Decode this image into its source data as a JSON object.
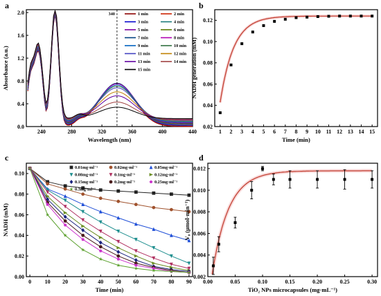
{
  "chart_data": [
    {
      "panel": "a",
      "type": "line",
      "xlabel": "Wavelength (nm)",
      "ylabel": "Absorbance (a.u.)",
      "xlim": [
        220,
        440
      ],
      "ylim": [
        0.0,
        2.05
      ],
      "xticks": [
        240,
        280,
        320,
        360,
        400,
        440
      ],
      "yticks": [
        0.0,
        0.4,
        0.8,
        1.2,
        1.6,
        2.0
      ],
      "annotation": "340",
      "annotation_x": 340,
      "legend_position": "top-right",
      "series": [
        {
          "name": "1 min",
          "color": "#8b0000",
          "peak340": 0.76
        },
        {
          "name": "2 min",
          "color": "#cc2200",
          "peak340": 0.75
        },
        {
          "name": "3 min",
          "color": "#0000cc",
          "peak340": 0.74
        },
        {
          "name": "4 min",
          "color": "#1a7a7a",
          "peak340": 0.73
        },
        {
          "name": "5 min",
          "color": "#7a00a0",
          "peak340": 0.72
        },
        {
          "name": "6 min",
          "color": "#5a7a00",
          "peak340": 0.71
        },
        {
          "name": "7 min",
          "color": "#004080",
          "peak340": 0.7
        },
        {
          "name": "8 min",
          "color": "#b000b0",
          "peak340": 0.68
        },
        {
          "name": "9 min",
          "color": "#0060c0",
          "peak340": 0.65
        },
        {
          "name": "10 min",
          "color": "#307040",
          "peak340": 0.62
        },
        {
          "name": "11 min",
          "color": "#4040c0",
          "peak340": 0.58
        },
        {
          "name": "12 min",
          "color": "#c08000",
          "peak340": 0.5
        },
        {
          "name": "13 min",
          "color": "#6000a0",
          "peak340": 0.42
        },
        {
          "name": "14 min",
          "color": "#a04040",
          "peak340": 0.3
        },
        {
          "name": "15 min",
          "color": "#000000",
          "peak340": 0.2
        }
      ]
    },
    {
      "panel": "b",
      "type": "scatter",
      "xlabel": "Time (min)",
      "ylabel": "NADH generation (mM)",
      "xlim": [
        0.5,
        15.5
      ],
      "ylim": [
        0.02,
        0.13
      ],
      "xticks": [
        1,
        2,
        3,
        4,
        5,
        6,
        7,
        8,
        9,
        10,
        11,
        12,
        13,
        14,
        15
      ],
      "yticks": [
        0.02,
        0.04,
        0.06,
        0.08,
        0.1,
        0.12
      ],
      "x": [
        1,
        2,
        3,
        4,
        5,
        6,
        7,
        8,
        9,
        10,
        11,
        12,
        13,
        14,
        15
      ],
      "y": [
        0.033,
        0.078,
        0.098,
        0.109,
        0.115,
        0.119,
        0.121,
        0.1225,
        0.123,
        0.1235,
        0.1238,
        0.124,
        0.124,
        0.124,
        0.124
      ],
      "fit_color": "#c0392b"
    },
    {
      "panel": "c",
      "type": "scatter",
      "xlabel": "Time (min)",
      "ylabel": "NADH (mM)",
      "xlim": [
        -2,
        92
      ],
      "ylim": [
        0.0,
        0.11
      ],
      "xticks": [
        0,
        10,
        20,
        30,
        40,
        50,
        60,
        70,
        80,
        90
      ],
      "yticks": [
        0.0,
        0.02,
        0.04,
        0.06,
        0.08,
        0.1
      ],
      "x": [
        0,
        10,
        20,
        30,
        40,
        50,
        60,
        70,
        80,
        90
      ],
      "legend_position": "top",
      "series": [
        {
          "name": "0.01mg·ml⁻¹",
          "color": "#222222",
          "marker": "square",
          "values": [
            0.105,
            0.092,
            0.088,
            0.086,
            0.084,
            0.083,
            0.082,
            0.081,
            0.08,
            0.079
          ]
        },
        {
          "name": "0.02mg·ml⁻¹",
          "color": "#a0522d",
          "marker": "circle",
          "values": [
            0.105,
            0.09,
            0.085,
            0.08,
            0.076,
            0.073,
            0.07,
            0.067,
            0.065,
            0.063
          ]
        },
        {
          "name": "0.05mg·ml⁻¹",
          "color": "#1f4fd8",
          "marker": "triangle",
          "values": [
            0.105,
            0.085,
            0.078,
            0.07,
            0.063,
            0.057,
            0.051,
            0.046,
            0.04,
            0.035
          ]
        },
        {
          "name": "0.08mg·ml⁻¹",
          "color": "#1f8f8f",
          "marker": "tridown",
          "values": [
            0.105,
            0.084,
            0.074,
            0.063,
            0.053,
            0.044,
            0.036,
            0.028,
            0.02,
            0.013
          ]
        },
        {
          "name": "0.1mg·ml⁻¹",
          "color": "#b03060",
          "marker": "tridown",
          "values": [
            0.105,
            0.082,
            0.068,
            0.055,
            0.044,
            0.034,
            0.025,
            0.018,
            0.012,
            0.008
          ]
        },
        {
          "name": "0.12mg·ml⁻¹",
          "color": "#6b8e23",
          "marker": "triright",
          "values": [
            0.105,
            0.078,
            0.062,
            0.049,
            0.038,
            0.028,
            0.02,
            0.013,
            0.009,
            0.006
          ]
        },
        {
          "name": "0.15mg·ml⁻¹",
          "color": "#1a237e",
          "marker": "diamond",
          "values": [
            0.105,
            0.075,
            0.058,
            0.045,
            0.033,
            0.024,
            0.016,
            0.01,
            0.007,
            0.005
          ]
        },
        {
          "name": "0.2mg·ml⁻¹",
          "color": "#4a1c1c",
          "marker": "circle",
          "values": [
            0.105,
            0.072,
            0.054,
            0.04,
            0.029,
            0.02,
            0.013,
            0.009,
            0.006,
            0.004
          ]
        },
        {
          "name": "0.25mg·ml⁻¹",
          "color": "#cc33cc",
          "marker": "pentagon",
          "values": [
            0.105,
            0.07,
            0.05,
            0.036,
            0.025,
            0.017,
            0.011,
            0.008,
            0.005,
            0.004
          ]
        },
        {
          "name": "0.3mg·ml⁻¹",
          "color": "#5aa02c",
          "marker": "star",
          "values": [
            0.105,
            0.06,
            0.04,
            0.026,
            0.017,
            0.011,
            0.008,
            0.006,
            0.005,
            0.004
          ]
        }
      ]
    },
    {
      "panel": "d",
      "type": "scatter",
      "xlabel": "TiO₂ NPs microcapsules (mg·mL⁻¹)",
      "ylabel": "V₀ (μmol·min⁻¹)",
      "xlim": [
        0.0,
        0.31
      ],
      "ylim": [
        0.002,
        0.0125
      ],
      "xticks": [
        0.0,
        0.05,
        0.1,
        0.15,
        0.2,
        0.25,
        0.3
      ],
      "yticks": [
        0.002,
        0.004,
        0.006,
        0.008,
        0.01,
        0.012
      ],
      "x": [
        0.01,
        0.02,
        0.05,
        0.08,
        0.1,
        0.12,
        0.15,
        0.2,
        0.25,
        0.3
      ],
      "y": [
        0.003,
        0.005,
        0.007,
        0.01,
        0.012,
        0.011,
        0.011,
        0.011,
        0.011,
        0.011
      ],
      "yerr": [
        0.0008,
        0.0007,
        0.0005,
        0.0008,
        0.0002,
        0.0005,
        0.0008,
        0.0008,
        0.0009,
        0.0008
      ],
      "fit_color": "#c0392b"
    }
  ]
}
